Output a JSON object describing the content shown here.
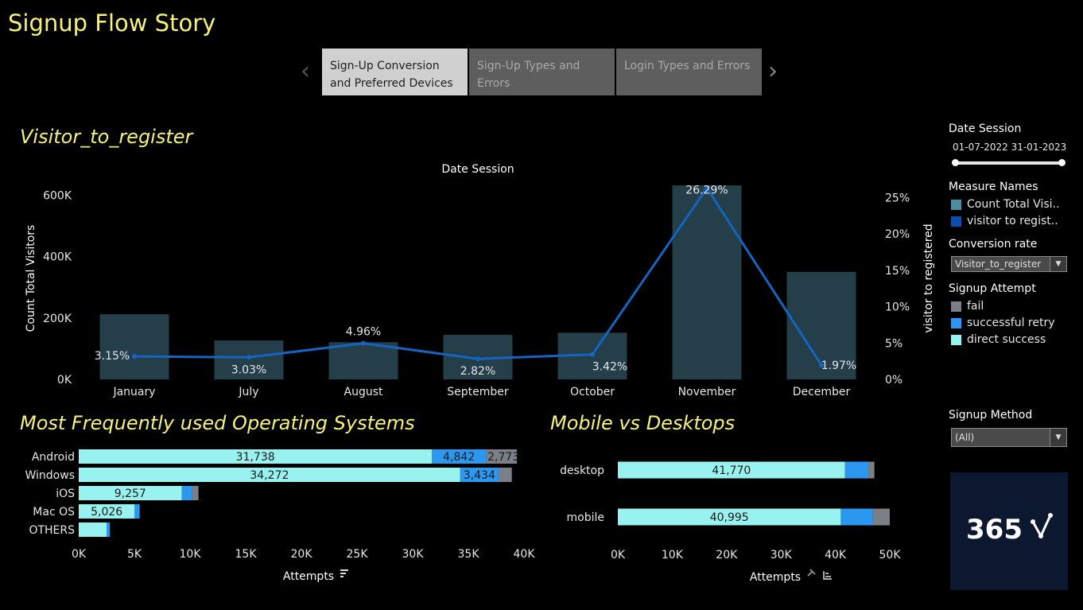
{
  "story": {
    "title": "Signup Flow Story",
    "tabs": [
      {
        "label_line1": "Sign-Up Conversion",
        "label_line2": "and Preferred Devices",
        "active": true
      },
      {
        "label_line1": "Sign-Up Types and",
        "label_line2": "Errors",
        "active": false
      },
      {
        "label_line1": "Login Types and Errors",
        "label_line2": "",
        "active": false
      }
    ]
  },
  "visitor_chart": {
    "title": "Visitor_to_register",
    "header": "Date Session"
  },
  "os_chart": {
    "title": "Most Frequently used Operating Systems"
  },
  "device_chart": {
    "title": "Mobile vs Desktops"
  },
  "sidebar": {
    "date_session": {
      "label": "Date Session",
      "start": "01-07-2022",
      "end": "31-01-2023"
    },
    "measure_names": {
      "label": "Measure Names",
      "items": [
        {
          "label": "Count Total Visi..",
          "color": "#4d8da0"
        },
        {
          "label": "visitor to regist..",
          "color": "#0d4fa8"
        }
      ]
    },
    "conversion_rate": {
      "label": "Conversion rate",
      "value": "Visitor_to_register"
    },
    "signup_attempt": {
      "label": "Signup Attempt",
      "items": [
        {
          "label": "fail",
          "color": "#7b7f87"
        },
        {
          "label": "successful retry",
          "color": "#2b97ee"
        },
        {
          "label": "direct success",
          "color": "#98f2f0"
        }
      ]
    },
    "signup_method": {
      "label": "Signup Method",
      "value": "(All)"
    },
    "logo_text": "365"
  },
  "colors": {
    "title_yellow": "#f6f27a",
    "bar_dark_teal": "#243f4a",
    "line_blue": "#1565c0",
    "direct_success": "#98f2f0",
    "successful_retry": "#2b97ee",
    "fail": "#7b7f87"
  },
  "chart_data": [
    {
      "type": "bar",
      "title": "Visitor_to_register",
      "subtitle": "Date Session",
      "categories": [
        "January",
        "July",
        "August",
        "September",
        "October",
        "November",
        "December"
      ],
      "series": [
        {
          "name": "Count Total Visitors",
          "axis": "left",
          "values": [
            212000,
            127000,
            121000,
            145000,
            152000,
            632000,
            350000
          ]
        },
        {
          "name": "visitor to registered",
          "axis": "right",
          "type": "line",
          "values": [
            3.15,
            3.03,
            4.96,
            2.82,
            3.42,
            26.29,
            1.97
          ],
          "labels": [
            "3.15%",
            "3.03%",
            "4.96%",
            "2.82%",
            "3.42%",
            "26.29%",
            "1.97%"
          ]
        }
      ],
      "ylabel": "Count Total Visitors",
      "y2label": "visitor to registered",
      "ylim": [
        0,
        640000
      ],
      "yticks": [
        "0K",
        "200K",
        "400K",
        "600K"
      ],
      "y2lim": [
        0,
        27
      ],
      "y2ticks": [
        "0%",
        "5%",
        "10%",
        "15%",
        "20%",
        "25%"
      ]
    },
    {
      "type": "bar",
      "orientation": "horizontal-stacked",
      "title": "Most Frequently used Operating Systems",
      "categories": [
        "Android",
        "Windows",
        "iOS",
        "Mac OS",
        "OTHERS"
      ],
      "series": [
        {
          "name": "direct success",
          "values": [
            31738,
            34272,
            9257,
            5026,
            2500
          ],
          "labels": [
            "31,738",
            "34,272",
            "9,257",
            "5,026",
            ""
          ]
        },
        {
          "name": "successful retry",
          "values": [
            4842,
            3434,
            900,
            450,
            300
          ],
          "labels": [
            "4,842",
            "3,434",
            "",
            "",
            ""
          ]
        },
        {
          "name": "fail",
          "values": [
            2773,
            1200,
            600,
            0,
            0
          ],
          "labels": [
            "2,773",
            "",
            "",
            "",
            ""
          ]
        }
      ],
      "xlabel": "Attempts",
      "xlim": [
        0,
        40000
      ],
      "xticks": [
        "0K",
        "5K",
        "10K",
        "15K",
        "20K",
        "25K",
        "30K",
        "35K",
        "40K"
      ]
    },
    {
      "type": "bar",
      "orientation": "horizontal-stacked",
      "title": "Mobile vs Desktops",
      "categories": [
        "desktop",
        "mobile"
      ],
      "series": [
        {
          "name": "direct success",
          "values": [
            41770,
            40995
          ],
          "labels": [
            "41,770",
            "40,995"
          ]
        },
        {
          "name": "successful retry",
          "values": [
            4300,
            5800
          ],
          "labels": [
            "",
            ""
          ]
        },
        {
          "name": "fail",
          "values": [
            1100,
            3200
          ],
          "labels": [
            "",
            ""
          ]
        }
      ],
      "xlabel": "Attempts",
      "xlim": [
        0,
        50000
      ],
      "xticks": [
        "0K",
        "10K",
        "20K",
        "30K",
        "40K",
        "50K"
      ]
    }
  ]
}
